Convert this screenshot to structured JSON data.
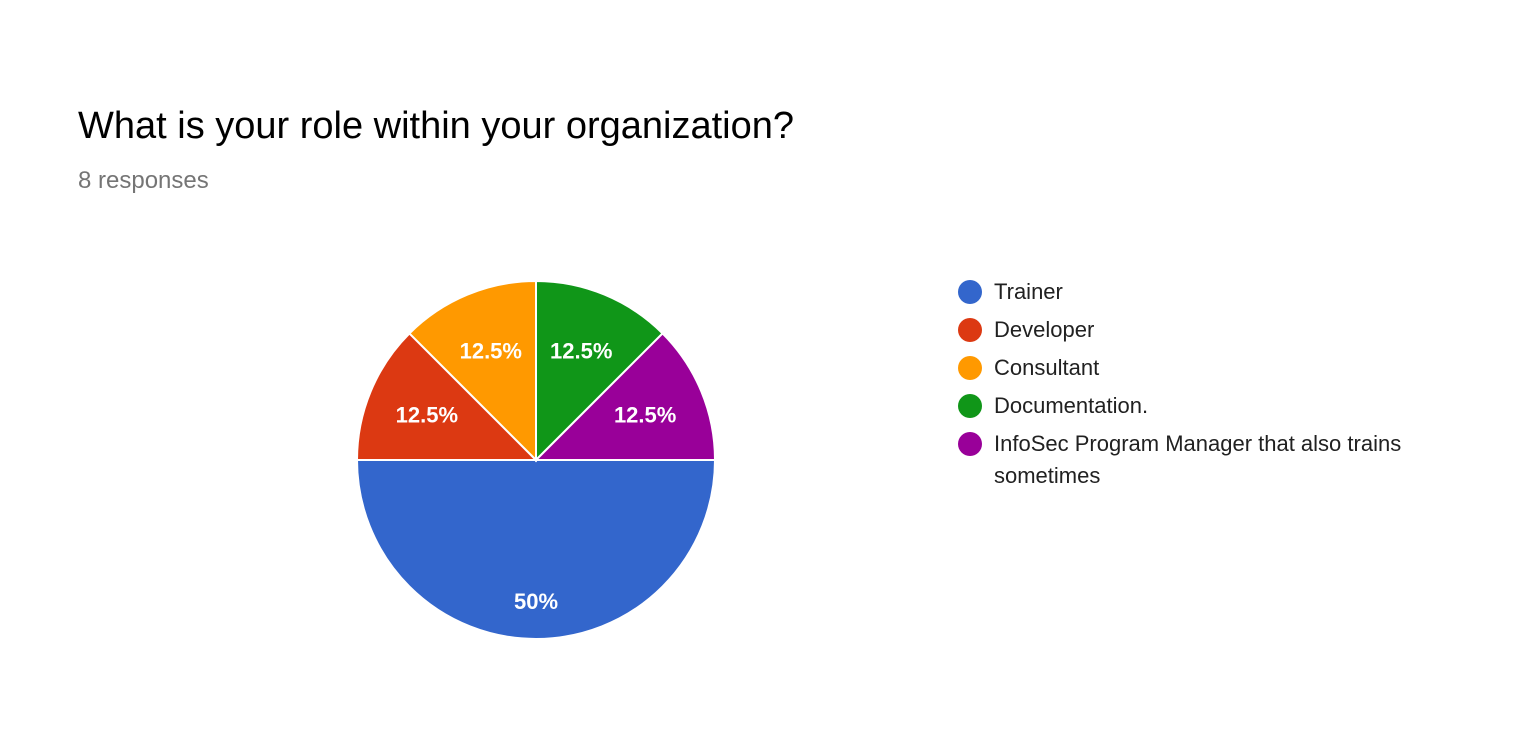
{
  "question": {
    "title": "What is your role within your organization?",
    "responses": "8 responses"
  },
  "chart_data": {
    "type": "pie",
    "categories": [
      "Trainer",
      "Developer",
      "Consultant",
      "Documentation.",
      "InfoSec Program Manager that also trains sometimes"
    ],
    "values": [
      50,
      12.5,
      12.5,
      12.5,
      12.5
    ],
    "labels": [
      "50%",
      "12.5%",
      "12.5%",
      "12.5%",
      "12.5%"
    ],
    "colors": [
      "#3366cc",
      "#dc3912",
      "#ff9900",
      "#109618",
      "#990099"
    ],
    "legend_position": "right"
  }
}
